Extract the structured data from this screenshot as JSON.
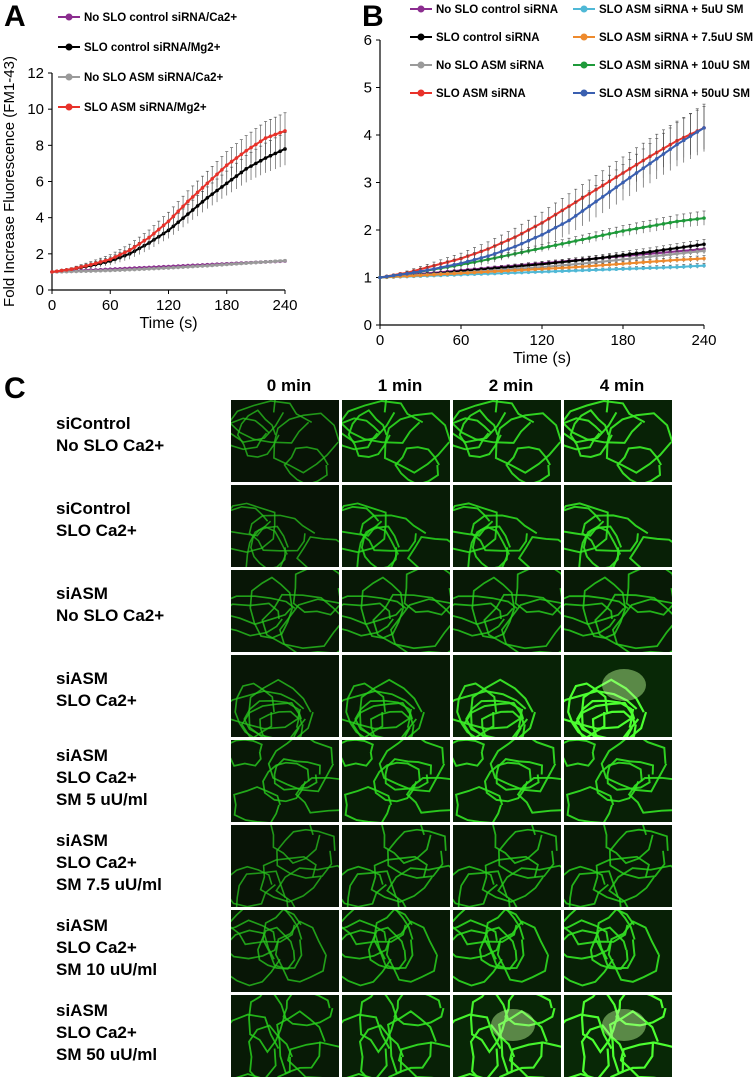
{
  "panel_labels": {
    "a": "A",
    "b": "B",
    "c": "C"
  },
  "colors": {
    "purple": "#8B2D8F",
    "black": "#000000",
    "gray": "#9A9A9A",
    "red": "#E8322A",
    "lightblue": "#4FB8D6",
    "orange": "#EE8A2D",
    "green": "#1E9A3A",
    "blue": "#3A5FB0"
  },
  "chart_data": [
    {
      "type": "line",
      "title": "",
      "xlabel": "Time (s)",
      "ylabel": "Fold Increase Fluorescence (FM1-43)",
      "xlim": [
        0,
        240
      ],
      "ylim": [
        0,
        12
      ],
      "xticks": [
        0,
        60,
        120,
        180,
        240
      ],
      "yticks": [
        0,
        2,
        4,
        6,
        8,
        10,
        12
      ],
      "x": [
        0,
        20,
        40,
        60,
        80,
        100,
        120,
        140,
        160,
        180,
        200,
        220,
        240
      ],
      "series": [
        {
          "name": "No SLO control siRNA/Ca2+",
          "color": "purple",
          "values": [
            1.0,
            1.05,
            1.1,
            1.15,
            1.2,
            1.25,
            1.3,
            1.35,
            1.4,
            1.45,
            1.5,
            1.55,
            1.6
          ],
          "err": 0.08
        },
        {
          "name": "SLO control siRNA/Mg2+",
          "color": "black",
          "values": [
            1.0,
            1.15,
            1.35,
            1.6,
            2.0,
            2.6,
            3.3,
            4.2,
            5.1,
            5.9,
            6.7,
            7.3,
            7.8
          ],
          "err": 0.9
        },
        {
          "name": "No SLO ASM siRNA/Ca2+",
          "color": "gray",
          "values": [
            1.0,
            1.02,
            1.05,
            1.08,
            1.12,
            1.17,
            1.22,
            1.28,
            1.34,
            1.41,
            1.48,
            1.55,
            1.62
          ],
          "err": 0.06
        },
        {
          "name": "SLO ASM siRNA/Mg2+",
          "color": "red",
          "values": [
            1.0,
            1.15,
            1.4,
            1.7,
            2.2,
            2.9,
            3.8,
            4.9,
            5.9,
            6.9,
            7.7,
            8.4,
            8.8
          ],
          "err": 1.0
        }
      ]
    },
    {
      "type": "line",
      "title": "",
      "xlabel": "Time (s)",
      "ylabel": "Fold Increase Fluorescence (FM1-43)",
      "xlim": [
        0,
        240
      ],
      "ylim": [
        0,
        6
      ],
      "xticks": [
        0,
        60,
        120,
        180,
        240
      ],
      "yticks": [
        0,
        1,
        2,
        3,
        4,
        5,
        6
      ],
      "x": [
        0,
        20,
        40,
        60,
        80,
        100,
        120,
        140,
        160,
        180,
        200,
        220,
        240
      ],
      "series": [
        {
          "name": "No SLO control siRNA",
          "color": "purple",
          "values": [
            1.0,
            1.05,
            1.1,
            1.15,
            1.2,
            1.25,
            1.3,
            1.35,
            1.4,
            1.45,
            1.5,
            1.55,
            1.6
          ],
          "err": 0.08
        },
        {
          "name": "SLO control siRNA",
          "color": "black",
          "values": [
            1.0,
            1.04,
            1.08,
            1.13,
            1.18,
            1.23,
            1.28,
            1.34,
            1.4,
            1.47,
            1.54,
            1.62,
            1.7
          ],
          "err": 0.1
        },
        {
          "name": "No SLO ASM siRNA",
          "color": "gray",
          "values": [
            1.0,
            1.04,
            1.07,
            1.1,
            1.14,
            1.18,
            1.22,
            1.27,
            1.32,
            1.38,
            1.44,
            1.5,
            1.56
          ],
          "err": 0.06
        },
        {
          "name": "SLO ASM siRNA",
          "color": "red",
          "values": [
            1.0,
            1.1,
            1.25,
            1.4,
            1.6,
            1.85,
            2.15,
            2.5,
            2.85,
            3.2,
            3.55,
            3.88,
            4.15
          ],
          "err": 0.45
        },
        {
          "name": "SLO ASM siRNA + 5uU SM",
          "color": "lightblue",
          "values": [
            1.0,
            1.02,
            1.04,
            1.06,
            1.08,
            1.1,
            1.12,
            1.14,
            1.16,
            1.18,
            1.2,
            1.22,
            1.25
          ],
          "err": 0.05
        },
        {
          "name": "SLO ASM siRNA + 7.5uU SM",
          "color": "orange",
          "values": [
            1.0,
            1.03,
            1.06,
            1.09,
            1.12,
            1.15,
            1.18,
            1.21,
            1.25,
            1.29,
            1.33,
            1.37,
            1.4
          ],
          "err": 0.06
        },
        {
          "name": "SLO ASM siRNA + 10uU SM",
          "color": "green",
          "values": [
            1.0,
            1.08,
            1.17,
            1.27,
            1.38,
            1.5,
            1.62,
            1.74,
            1.86,
            1.98,
            2.08,
            2.18,
            2.25
          ],
          "err": 0.15
        },
        {
          "name": "SLO ASM siRNA + 50uU SM",
          "color": "blue",
          "values": [
            1.0,
            1.08,
            1.18,
            1.3,
            1.45,
            1.65,
            1.9,
            2.2,
            2.6,
            3.0,
            3.4,
            3.8,
            4.15
          ],
          "err": 0.5
        }
      ]
    }
  ],
  "grid": {
    "columns": [
      "0 min",
      "1 min",
      "2 min",
      "4 min"
    ],
    "rows": [
      {
        "lines": [
          "siControl",
          "No SLO Ca2+"
        ],
        "bright": [
          0.5,
          0.75,
          0.8,
          0.85
        ]
      },
      {
        "lines": [
          "siControl",
          "SLO Ca2+"
        ],
        "bright": [
          0.5,
          0.7,
          0.75,
          0.8
        ]
      },
      {
        "lines": [
          "siASM",
          "No SLO Ca2+"
        ],
        "bright": [
          0.55,
          0.6,
          0.62,
          0.65
        ]
      },
      {
        "lines": [
          "siASM",
          "SLO Ca2+"
        ],
        "bright": [
          0.55,
          0.65,
          0.85,
          1.0
        ]
      },
      {
        "lines": [
          "siASM",
          "SLO Ca2+",
          "SM 5 uU/ml"
        ],
        "bright": [
          0.6,
          0.75,
          0.8,
          0.8
        ]
      },
      {
        "lines": [
          "siASM",
          "SLO Ca2+",
          "SM 7.5 uU/ml"
        ],
        "bright": [
          0.5,
          0.6,
          0.62,
          0.65
        ]
      },
      {
        "lines": [
          "siASM",
          "SLO Ca2+",
          "SM 10 uU/ml"
        ],
        "bright": [
          0.55,
          0.65,
          0.75,
          0.8
        ]
      },
      {
        "lines": [
          "siASM",
          "SLO Ca2+",
          "SM 50 uU/ml"
        ],
        "bright": [
          0.65,
          0.8,
          0.95,
          1.0
        ]
      }
    ]
  }
}
